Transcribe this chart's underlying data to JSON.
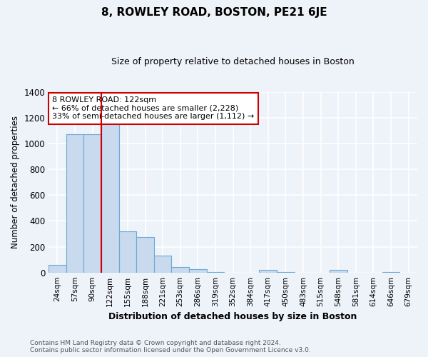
{
  "title": "8, ROWLEY ROAD, BOSTON, PE21 6JE",
  "subtitle": "Size of property relative to detached houses in Boston",
  "xlabel": "Distribution of detached houses by size in Boston",
  "ylabel": "Number of detached properties",
  "bar_labels": [
    "24sqm",
    "57sqm",
    "90sqm",
    "122sqm",
    "155sqm",
    "188sqm",
    "221sqm",
    "253sqm",
    "286sqm",
    "319sqm",
    "352sqm",
    "384sqm",
    "417sqm",
    "450sqm",
    "483sqm",
    "515sqm",
    "548sqm",
    "581sqm",
    "614sqm",
    "646sqm",
    "679sqm"
  ],
  "bar_values": [
    60,
    1070,
    1070,
    1180,
    320,
    275,
    130,
    40,
    25,
    5,
    0,
    0,
    22,
    5,
    0,
    0,
    20,
    0,
    0,
    5,
    0
  ],
  "bar_color": "#c9d9ee",
  "bar_edge_color": "#6baad4",
  "vline_x": 2.5,
  "vline_color": "#cc0000",
  "annotation_text": "8 ROWLEY ROAD: 122sqm\n← 66% of detached houses are smaller (2,228)\n33% of semi-detached houses are larger (1,112) →",
  "annotation_box_color": "#ffffff",
  "annotation_edge_color": "#cc0000",
  "ylim": [
    0,
    1400
  ],
  "yticks": [
    0,
    200,
    400,
    600,
    800,
    1000,
    1200,
    1400
  ],
  "background_color": "#eef2f9",
  "grid_color": "#ffffff",
  "footer_line1": "Contains HM Land Registry data © Crown copyright and database right 2024.",
  "footer_line2": "Contains public sector information licensed under the Open Government Licence v3.0."
}
